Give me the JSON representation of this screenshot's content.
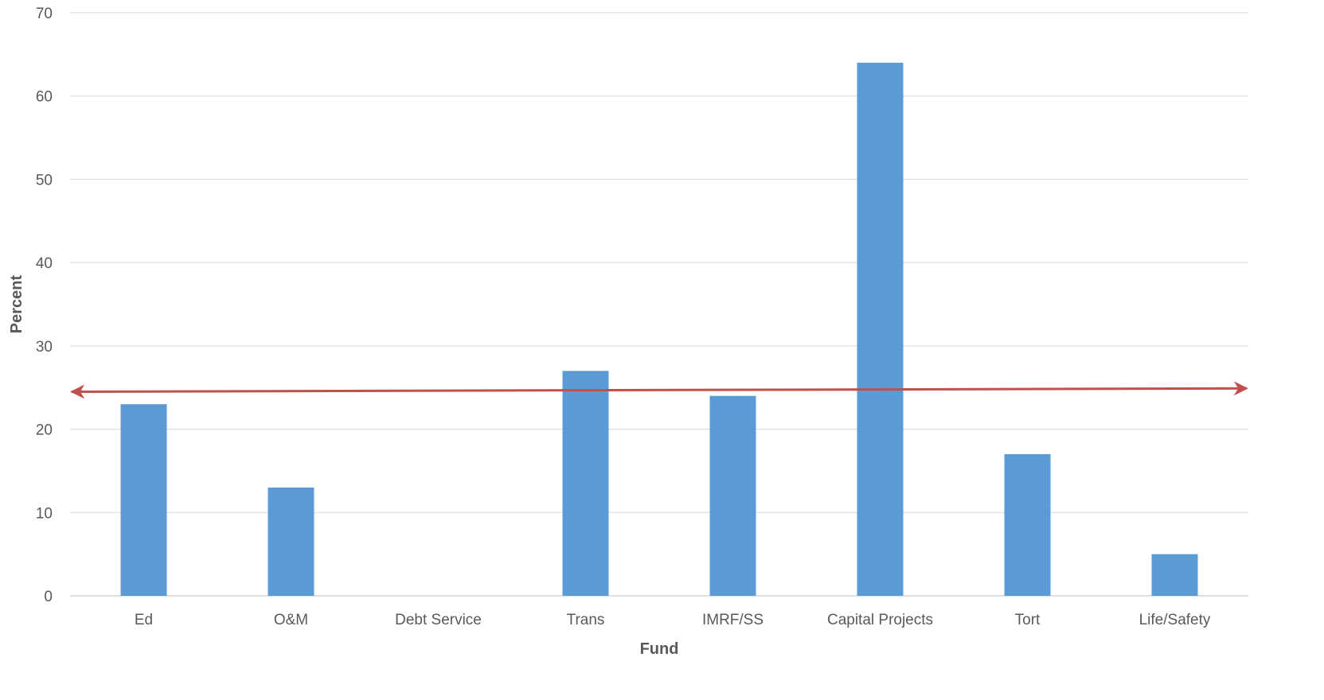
{
  "chart_data": {
    "type": "bar",
    "categories": [
      "Ed",
      "O&M",
      "Debt Service",
      "Trans",
      "IMRF/SS",
      "Capital Projects",
      "Tort",
      "Life/Safety"
    ],
    "values": [
      23,
      13,
      0,
      27,
      24,
      64,
      17,
      5
    ],
    "xlabel": "Fund",
    "ylabel": "Percent",
    "ylim": [
      0,
      70
    ],
    "yticks": [
      0,
      10,
      20,
      30,
      40,
      50,
      60,
      70
    ],
    "grid": true,
    "legend": "none",
    "bar_color": "#5b9bd5",
    "reference_line": {
      "style": "double-headed arrow",
      "value_start": 24.5,
      "value_end": 24.9,
      "color": "#c0504d"
    }
  }
}
